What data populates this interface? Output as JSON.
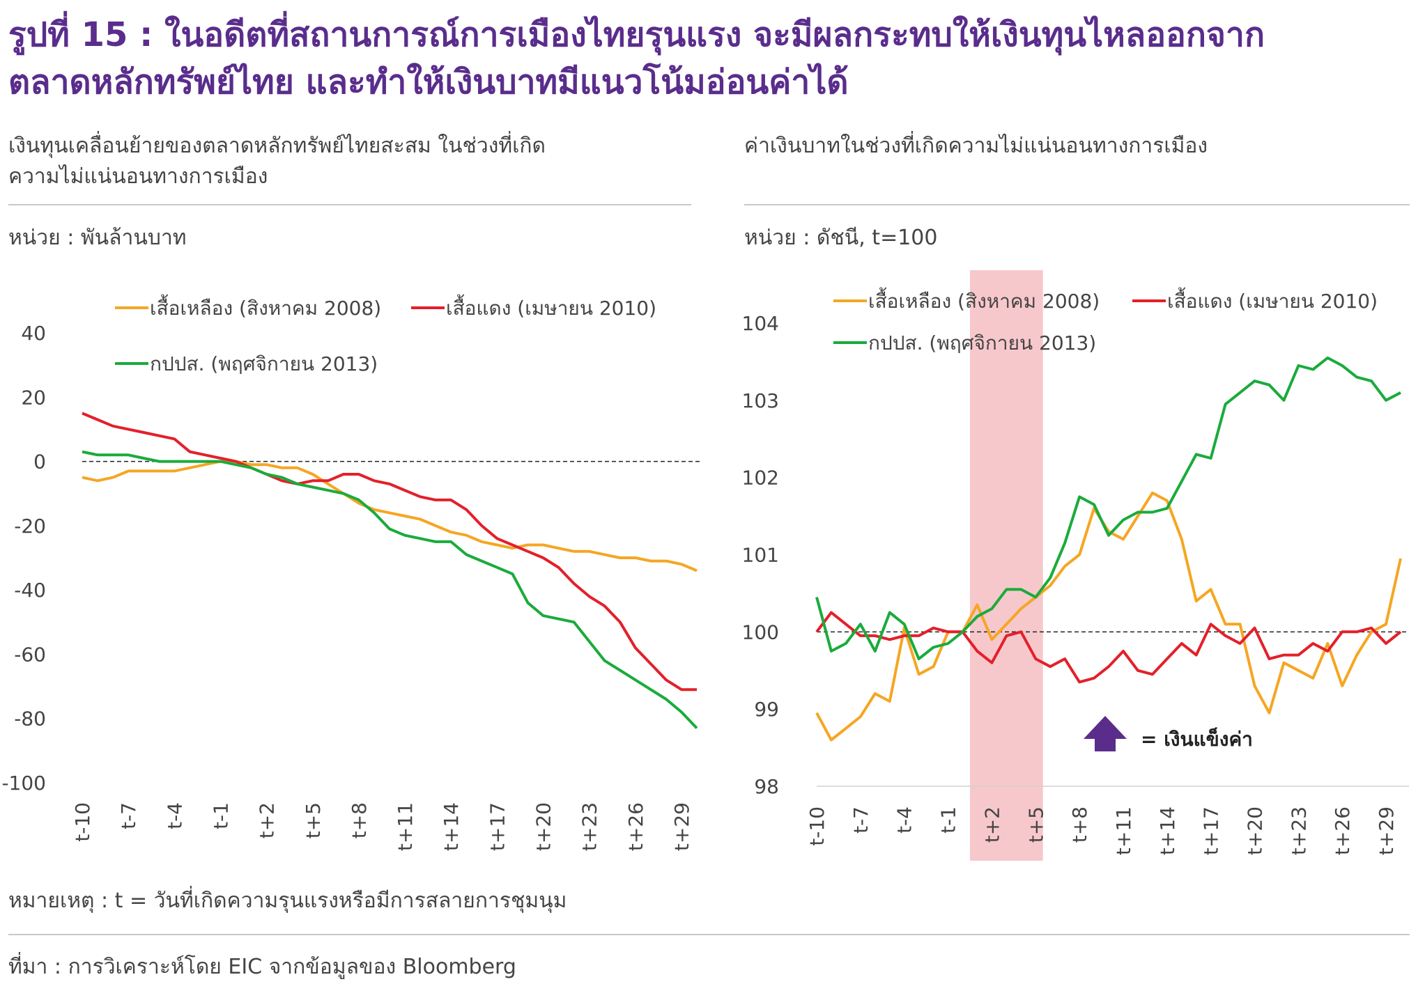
{
  "figure": {
    "title": "รูปที่ 15 : ในอดีตที่สถานการณ์การเมืองไทยรุนแรง จะมีผลกระทบให้เงินทุนไหลออกจากตลาดหลักทรัพย์ไทย และทำให้เงินบาทมีแนวโน้มอ่อนค่าได้",
    "note": "หมายเหตุ : t = วันที่เกิดความรุนแรงหรือมีการสลายการชุมนุม",
    "source": "ที่มา : การวิเคราะห์โดย EIC จากข้อมูลของ Bloomberg",
    "arrow_label": "= เงินแข็งค่า"
  },
  "colors": {
    "yellow": "#f5a623",
    "red": "#e3202a",
    "green": "#1aab3c",
    "shade": "#f7c8cb",
    "accent": "#5a2d8c"
  },
  "chart_data": [
    {
      "type": "line",
      "title": "เงินทุนเคลื่อนย้ายของตลาดหลักทรัพย์ไทยสะสม ในช่วงที่เกิดความไม่แน่นอนทางการเมือง",
      "unit": "หน่วย : พันล้านบาท",
      "x": [
        "t-10",
        "t-9",
        "t-8",
        "t-7",
        "t-6",
        "t-5",
        "t-4",
        "t-3",
        "t-2",
        "t-1",
        "t",
        "t+1",
        "t+2",
        "t+3",
        "t+4",
        "t+5",
        "t+6",
        "t+7",
        "t+8",
        "t+9",
        "t+10",
        "t+11",
        "t+12",
        "t+13",
        "t+14",
        "t+15",
        "t+16",
        "t+17",
        "t+18",
        "t+19",
        "t+20",
        "t+21",
        "t+22",
        "t+23",
        "t+24",
        "t+25",
        "t+26",
        "t+27",
        "t+28",
        "t+29",
        "t+30"
      ],
      "x_tick_labels": [
        "t-10",
        "t-7",
        "t-4",
        "t-1",
        "t+2",
        "t+5",
        "t+8",
        "t+11",
        "t+14",
        "t+17",
        "t+20",
        "t+23",
        "t+26",
        "t+29"
      ],
      "ylim": [
        -100,
        40
      ],
      "yticks": [
        "40",
        "20",
        "0",
        "-20",
        "-40",
        "-60",
        "-80",
        "-100"
      ],
      "reference_line": 0,
      "legend": "top",
      "series": [
        {
          "name": "เสื้อเหลือง (สิงหาคม 2008)",
          "color": "yellow",
          "values": [
            -5,
            -6,
            -5,
            -3,
            -3,
            -3,
            -3,
            -2,
            -1,
            0,
            0,
            -1,
            -1,
            -2,
            -2,
            -4,
            -7,
            -10,
            -13,
            -15,
            -16,
            -17,
            -18,
            -20,
            -22,
            -23,
            -25,
            -26,
            -27,
            -26,
            -26,
            -27,
            -28,
            -28,
            -29,
            -30,
            -30,
            -31,
            -31,
            -32,
            -34
          ]
        },
        {
          "name": "เสื้อแดง (เมษายน 2010)",
          "color": "red",
          "values": [
            15,
            13,
            11,
            10,
            9,
            8,
            7,
            3,
            2,
            1,
            0,
            -2,
            -4,
            -6,
            -7,
            -6,
            -6,
            -4,
            -4,
            -6,
            -7,
            -9,
            -11,
            -12,
            -12,
            -15,
            -20,
            -24,
            -26,
            -28,
            -30,
            -33,
            -38,
            -42,
            -45,
            -50,
            -58,
            -63,
            -68,
            -71,
            -71
          ]
        },
        {
          "name": "กปปส. (พฤศจิกายน 2013)",
          "color": "green",
          "values": [
            3,
            2,
            2,
            2,
            1,
            0,
            0,
            0,
            0,
            0,
            -1,
            -2,
            -4,
            -5,
            -7,
            -8,
            -9,
            -10,
            -12,
            -16,
            -21,
            -23,
            -24,
            -25,
            -25,
            -29,
            -31,
            -33,
            -35,
            -44,
            -48,
            -49,
            -50,
            -56,
            -62,
            -65,
            -68,
            -71,
            -74,
            -78,
            -83
          ]
        }
      ]
    },
    {
      "type": "line",
      "title": "ค่าเงินบาทในช่วงที่เกิดความไม่แน่นอนทางการเมือง",
      "unit": "หน่วย : ดัชนี, t=100",
      "x": [
        "t-10",
        "t-9",
        "t-8",
        "t-7",
        "t-6",
        "t-5",
        "t-4",
        "t-3",
        "t-2",
        "t-1",
        "t",
        "t+1",
        "t+2",
        "t+3",
        "t+4",
        "t+5",
        "t+6",
        "t+7",
        "t+8",
        "t+9",
        "t+10",
        "t+11",
        "t+12",
        "t+13",
        "t+14",
        "t+15",
        "t+16",
        "t+17",
        "t+18",
        "t+19",
        "t+20",
        "t+21",
        "t+22",
        "t+23",
        "t+24",
        "t+25",
        "t+26",
        "t+27",
        "t+28",
        "t+29",
        "t+30"
      ],
      "x_tick_labels": [
        "t-10",
        "t-7",
        "t-4",
        "t-1",
        "t+2",
        "t+5",
        "t+8",
        "t+11",
        "t+14",
        "t+17",
        "t+20",
        "t+23",
        "t+26",
        "t+29"
      ],
      "ylim": [
        98,
        104
      ],
      "yticks": [
        "104",
        "103",
        "102",
        "101",
        "100",
        "99",
        "98"
      ],
      "reference_line": 100,
      "shaded_range": [
        "t+1",
        "t+5"
      ],
      "legend": "top",
      "series": [
        {
          "name": "เสื้อเหลือง (สิงหาคม 2008)",
          "color": "yellow",
          "values": [
            98.95,
            98.6,
            98.75,
            98.9,
            99.2,
            99.1,
            100.05,
            99.45,
            99.55,
            100.0,
            100.0,
            100.35,
            99.9,
            100.1,
            100.3,
            100.45,
            100.6,
            100.85,
            101.0,
            101.6,
            101.3,
            101.2,
            101.5,
            101.8,
            101.7,
            101.2,
            100.4,
            100.55,
            100.1,
            100.1,
            99.3,
            98.95,
            99.6,
            99.5,
            99.4,
            99.85,
            99.3,
            99.7,
            100.0,
            100.1,
            100.95
          ]
        },
        {
          "name": "เสื้อแดง (เมษายน 2010)",
          "color": "red",
          "values": [
            100.0,
            100.25,
            100.1,
            99.95,
            99.95,
            99.9,
            99.95,
            99.95,
            100.05,
            100.0,
            100.0,
            99.75,
            99.6,
            99.95,
            100.0,
            99.65,
            99.55,
            99.65,
            99.35,
            99.4,
            99.55,
            99.75,
            99.5,
            99.45,
            99.65,
            99.85,
            99.7,
            100.1,
            99.95,
            99.85,
            100.05,
            99.65,
            99.7,
            99.7,
            99.85,
            99.75,
            100.0,
            100.0,
            100.05,
            99.85,
            100.0
          ]
        },
        {
          "name": "กปปส. (พฤศจิกายน 2013)",
          "color": "green",
          "values": [
            100.45,
            99.75,
            99.85,
            100.1,
            99.75,
            100.25,
            100.1,
            99.65,
            99.8,
            99.85,
            100.0,
            100.2,
            100.3,
            100.55,
            100.55,
            100.45,
            100.7,
            101.15,
            101.75,
            101.65,
            101.25,
            101.45,
            101.55,
            101.55,
            101.6,
            101.95,
            102.3,
            102.25,
            102.95,
            103.1,
            103.25,
            103.2,
            103.0,
            103.45,
            103.4,
            103.55,
            103.45,
            103.3,
            103.25,
            103.0,
            103.1
          ]
        }
      ]
    }
  ]
}
